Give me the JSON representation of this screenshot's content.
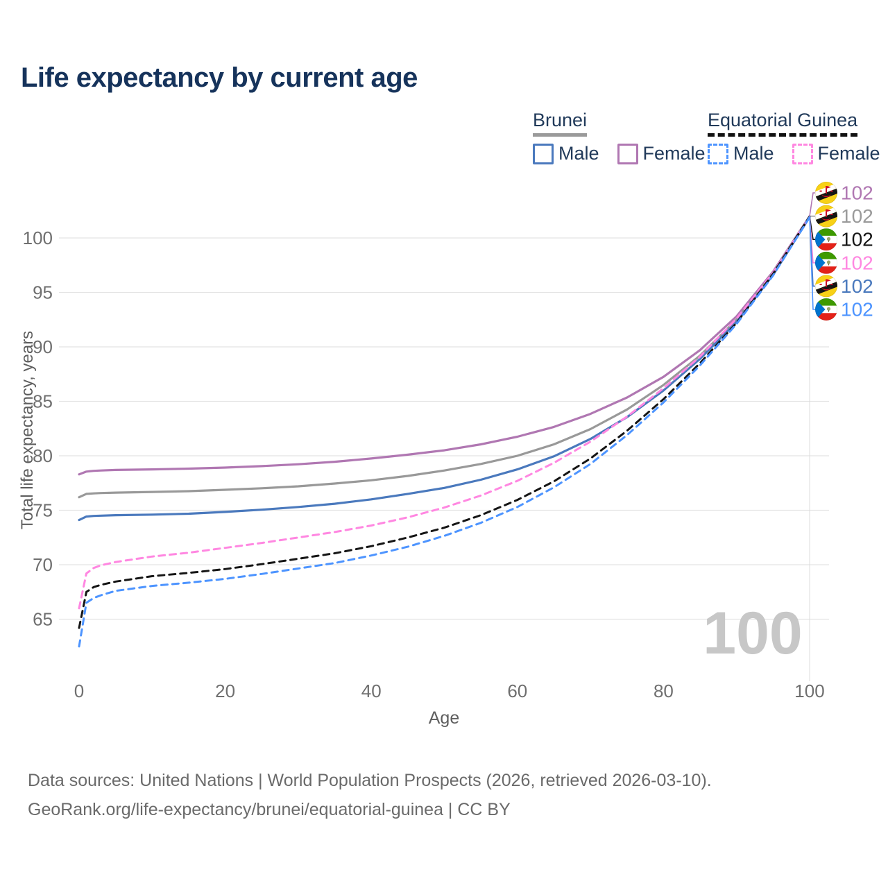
{
  "page": {
    "title": "Life expectancy by current age"
  },
  "legend": {
    "groups": [
      {
        "name": "Brunei",
        "underline_style": "solid",
        "underline_color": "#9a9a9a",
        "items": [
          {
            "label": "Male",
            "color": "#4a79bd",
            "dashed": false
          },
          {
            "label": "Female",
            "color": "#b077b2",
            "dashed": false
          }
        ]
      },
      {
        "name": "Equatorial Guinea",
        "underline_style": "dashed",
        "underline_color": "#111111",
        "items": [
          {
            "label": "Male",
            "color": "#4d94ff",
            "dashed": true
          },
          {
            "label": "Female",
            "color": "#ff87e1",
            "dashed": true
          }
        ]
      }
    ]
  },
  "chart_data": {
    "type": "line",
    "title": "Life expectancy by current age",
    "xlabel": "Age",
    "ylabel": "Total life expectancy, years",
    "xlim": [
      0,
      100
    ],
    "ylim": [
      62,
      103
    ],
    "xticks": [
      0,
      20,
      40,
      60,
      80,
      100
    ],
    "yticks": [
      65,
      70,
      75,
      80,
      85,
      90,
      95,
      100
    ],
    "grid": "horizontal",
    "age_marker": 100,
    "x": [
      0,
      1,
      2,
      3,
      5,
      10,
      15,
      20,
      25,
      30,
      35,
      40,
      45,
      50,
      55,
      60,
      65,
      70,
      75,
      80,
      85,
      90,
      95,
      100
    ],
    "series": [
      {
        "name": "Brunei Female",
        "country": "Brunei",
        "sex": "Female",
        "color": "#b077b2",
        "dash": false,
        "values": [
          78.3,
          78.55,
          78.62,
          78.65,
          78.7,
          78.75,
          78.82,
          78.92,
          79.05,
          79.22,
          79.45,
          79.75,
          80.1,
          80.5,
          81.05,
          81.75,
          82.65,
          83.85,
          85.35,
          87.25,
          89.7,
          92.8,
          96.9,
          102.0
        ]
      },
      {
        "name": "Brunei Both sexes",
        "country": "Brunei",
        "sex": "Both",
        "color": "#999999",
        "dash": false,
        "values": [
          76.2,
          76.5,
          76.55,
          76.58,
          76.62,
          76.68,
          76.75,
          76.88,
          77.02,
          77.2,
          77.45,
          77.75,
          78.15,
          78.65,
          79.25,
          80.0,
          81.05,
          82.45,
          84.25,
          86.5,
          89.2,
          92.5,
          96.75,
          101.98
        ]
      },
      {
        "name": "Brunei Male",
        "country": "Brunei",
        "sex": "Male",
        "color": "#4a79bd",
        "dash": false,
        "values": [
          74.1,
          74.42,
          74.48,
          74.5,
          74.55,
          74.6,
          74.68,
          74.85,
          75.05,
          75.3,
          75.6,
          76.0,
          76.5,
          77.05,
          77.8,
          78.75,
          79.95,
          81.55,
          83.55,
          86.0,
          88.9,
          92.3,
          96.6,
          101.92
        ]
      },
      {
        "name": "Equatorial Guinea Female",
        "country": "Equatorial Guinea",
        "sex": "Female",
        "color": "#ff87e1",
        "dash": true,
        "values": [
          66.0,
          69.2,
          69.7,
          69.95,
          70.25,
          70.75,
          71.1,
          71.55,
          72.0,
          72.5,
          73.0,
          73.6,
          74.35,
          75.25,
          76.35,
          77.7,
          79.35,
          81.3,
          83.6,
          86.2,
          89.1,
          92.6,
          96.8,
          101.94
        ]
      },
      {
        "name": "Equatorial Guinea Both sexes",
        "country": "Equatorial Guinea",
        "sex": "Both",
        "color": "#151515",
        "dash": true,
        "values": [
          64.2,
          67.5,
          67.95,
          68.15,
          68.45,
          68.95,
          69.25,
          69.6,
          70.05,
          70.55,
          71.05,
          71.7,
          72.5,
          73.4,
          74.55,
          75.95,
          77.65,
          79.75,
          82.3,
          85.2,
          88.5,
          92.2,
          96.7,
          101.96
        ]
      },
      {
        "name": "Equatorial Guinea Male",
        "country": "Equatorial Guinea",
        "sex": "Male",
        "color": "#4d94ff",
        "dash": true,
        "values": [
          62.5,
          66.5,
          66.95,
          67.2,
          67.6,
          68.05,
          68.35,
          68.7,
          69.15,
          69.65,
          70.15,
          70.85,
          71.65,
          72.65,
          73.85,
          75.3,
          77.1,
          79.25,
          81.9,
          84.9,
          88.3,
          92.1,
          96.55,
          101.9
        ]
      }
    ],
    "end_labels": [
      {
        "flag": "brunei",
        "value": "102",
        "color": "#b077b2"
      },
      {
        "flag": "brunei",
        "value": "102",
        "color": "#9a9a9a"
      },
      {
        "flag": "equatorial-guinea",
        "value": "102",
        "color": "#151515"
      },
      {
        "flag": "equatorial-guinea",
        "value": "102",
        "color": "#ff87e1"
      },
      {
        "flag": "brunei",
        "value": "102",
        "color": "#4a79bd"
      },
      {
        "flag": "equatorial-guinea",
        "value": "102",
        "color": "#4d94ff"
      }
    ]
  },
  "age_indicator": {
    "value": "100"
  },
  "footer": {
    "line1": "Data sources: United Nations | World Population Prospects (2026, retrieved 2026-03-10).",
    "line2": "GeoRank.org/life-expectancy/brunei/equatorial-guinea | CC BY"
  }
}
